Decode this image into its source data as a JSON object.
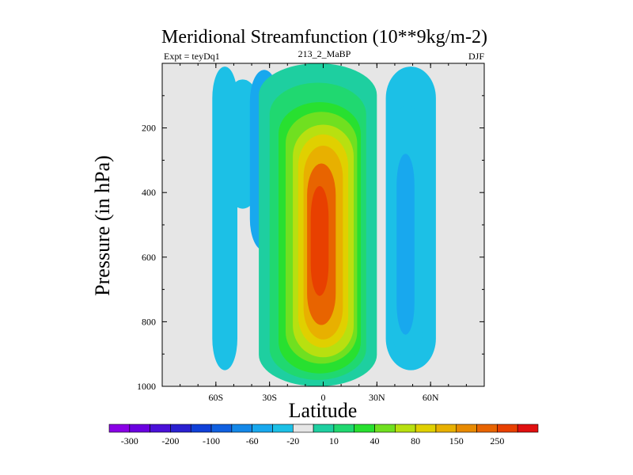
{
  "chart_data": {
    "type": "heatmap",
    "title": "Meridional Streamfunction (10**9kg/m-2)",
    "left_string": "Expt = teyDq1",
    "center_string": "213_2_MaBP",
    "right_string": "DJF",
    "xlabel": "Latitude",
    "ylabel": "Pressure (in hPa)",
    "xlim": [
      -90,
      90
    ],
    "ylim": [
      1000,
      0
    ],
    "x_ticks": [
      {
        "value": -60,
        "label": "60S"
      },
      {
        "value": -30,
        "label": "30S"
      },
      {
        "value": 0,
        "label": "0"
      },
      {
        "value": 30,
        "label": "30N"
      },
      {
        "value": 60,
        "label": "60N"
      }
    ],
    "y_ticks": [
      {
        "value": 200,
        "label": "200"
      },
      {
        "value": 400,
        "label": "400"
      },
      {
        "value": 600,
        "label": "600"
      },
      {
        "value": 800,
        "label": "800"
      },
      {
        "value": 1000,
        "label": "1000"
      }
    ],
    "colorbar": {
      "colors": [
        "#8a00e6",
        "#6a00e0",
        "#4a10d8",
        "#2a20d0",
        "#1040d8",
        "#1060e0",
        "#1488e8",
        "#18a8ee",
        "#1cc0e6",
        "#e6e6e6",
        "#1ecfa0",
        "#20d870",
        "#28e030",
        "#70e020",
        "#b8e010",
        "#e0d000",
        "#e8b000",
        "#e88a00",
        "#e86400",
        "#e84000",
        "#e01010"
      ],
      "tick_labels": [
        "-300",
        "-200",
        "-100",
        "-60",
        "-20",
        "10",
        "40",
        "80",
        "150",
        "250"
      ],
      "tick_boundaries": [
        1,
        3,
        5,
        7,
        9,
        11,
        13,
        15,
        17,
        19
      ]
    },
    "background_color": "#e6e6e6",
    "features": [
      {
        "name": "left-negative-band",
        "level": -10,
        "cx": -55,
        "cy": 480,
        "hw": 7,
        "hh": 470
      },
      {
        "name": "sh-weak-negative-tongue",
        "level": -20,
        "cx": -45,
        "cy": 250,
        "hw": 10,
        "hh": 200
      },
      {
        "name": "sh-negative-core",
        "level": -40,
        "cx": -33,
        "cy": 300,
        "hw": 8,
        "hh": 280
      },
      {
        "name": "sh-negative-inner",
        "level": -60,
        "cx": -30,
        "cy": 250,
        "hw": 4,
        "hh": 100
      },
      {
        "name": "hadley-cell-10",
        "level": 10,
        "cx": -3,
        "cy": 500,
        "hw": 33,
        "hh": 500
      },
      {
        "name": "hadley-cell-20",
        "level": 20,
        "cx": -3,
        "cy": 520,
        "hw": 27,
        "hh": 460
      },
      {
        "name": "hadley-cell-40",
        "level": 40,
        "cx": -2,
        "cy": 540,
        "hw": 23,
        "hh": 420
      },
      {
        "name": "hadley-cell-60",
        "level": 60,
        "cx": -1,
        "cy": 540,
        "hw": 20,
        "hh": 390
      },
      {
        "name": "hadley-cell-80",
        "level": 80,
        "cx": 0,
        "cy": 550,
        "hw": 17,
        "hh": 360
      },
      {
        "name": "hadley-cell-100",
        "level": 100,
        "cx": 0,
        "cy": 550,
        "hw": 14,
        "hh": 330
      },
      {
        "name": "hadley-cell-150",
        "level": 150,
        "cx": 0,
        "cy": 555,
        "hw": 11,
        "hh": 300
      },
      {
        "name": "hadley-cell-200",
        "level": 200,
        "cx": -1,
        "cy": 560,
        "hw": 8,
        "hh": 250
      },
      {
        "name": "hadley-cell-250",
        "level": 250,
        "cx": -2,
        "cy": 550,
        "hw": 5,
        "hh": 170
      },
      {
        "name": "nh-negative-10",
        "level": -10,
        "cx": 49,
        "cy": 480,
        "hw": 14,
        "hh": 470
      },
      {
        "name": "nh-negative-20",
        "level": -20,
        "cx": 47,
        "cy": 520,
        "hw": 9,
        "hh": 390
      },
      {
        "name": "nh-negative-40",
        "level": -40,
        "cx": 46,
        "cy": 560,
        "hw": 5,
        "hh": 280
      }
    ]
  }
}
